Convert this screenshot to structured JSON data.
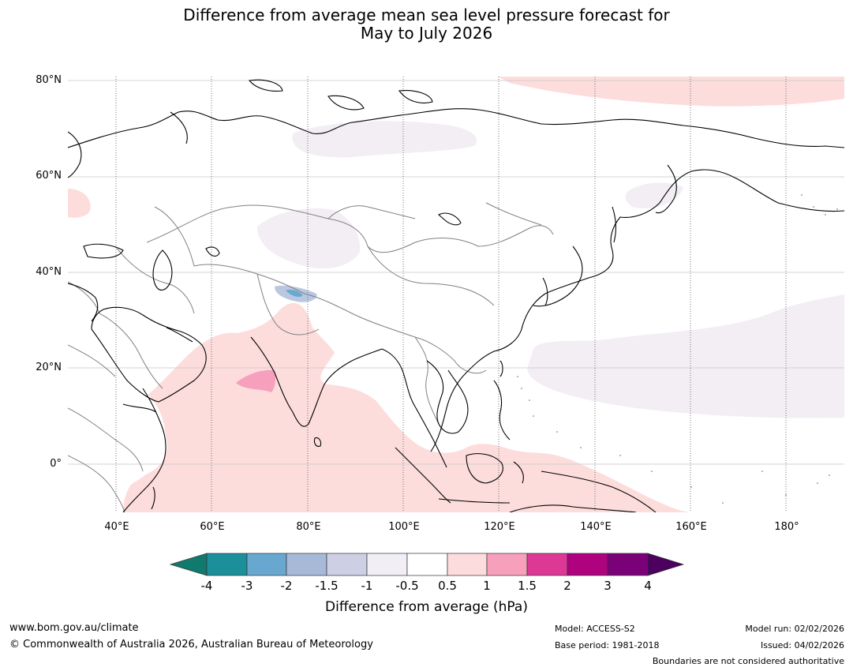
{
  "title": {
    "line1": "Difference from average mean sea level pressure forecast for",
    "line2": "May to July 2026"
  },
  "map": {
    "lat_labels": [
      "80°N",
      "60°N",
      "40°N",
      "20°N",
      "0°"
    ],
    "lon_labels": [
      "40°E",
      "60°E",
      "80°E",
      "100°E",
      "120°E",
      "140°E",
      "160°E",
      "180°"
    ],
    "extent": {
      "lon": [
        30,
        192
      ],
      "lat": [
        -10,
        81
      ]
    },
    "gridline_lons": [
      40,
      60,
      80,
      100,
      120,
      140,
      160,
      180
    ],
    "gridline_lats": [
      80,
      60,
      40,
      20,
      0
    ],
    "colors": {
      "land_outline": "#000000",
      "borders": "#808080",
      "light_pink": "#fddcdc",
      "mid_pink": "#f7a0bd",
      "light_lilac": "#f2eef4",
      "light_blue": "#6aa9cf"
    }
  },
  "colorbar": {
    "ticks": [
      "-4",
      "-3",
      "-2",
      "-1.5",
      "-1",
      "-0.5",
      "0.5",
      "1",
      "1.5",
      "2",
      "3",
      "4"
    ],
    "colors": [
      "#117a6e",
      "#1b8f9a",
      "#68a8d0",
      "#a7b9d9",
      "#cdd0e4",
      "#f2eef5",
      "#ffffff",
      "#fddcdd",
      "#f7a0bb",
      "#dd3896",
      "#ae027f",
      "#7b0179",
      "#4c0060"
    ],
    "label": "Difference from average (hPa)"
  },
  "footer": {
    "url": "www.bom.gov.au/climate",
    "copyright": "© Commonwealth of Australia 2026, Australian Bureau of Meteorology",
    "model": "Model: ACCESS-S2",
    "base_period": "Base period: 1981-2018",
    "model_run": "Model run: 02/02/2026",
    "issued": "Issued: 04/02/2026",
    "disclaimer": "Boundaries are not considered authoritative"
  }
}
